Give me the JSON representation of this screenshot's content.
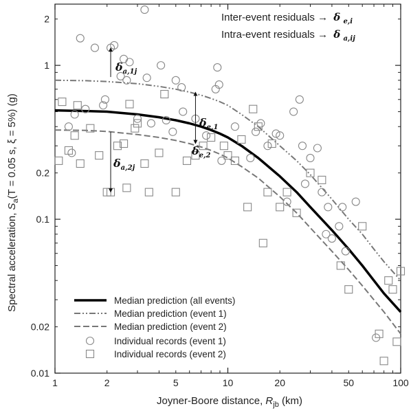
{
  "chart_data": {
    "type": "scatter",
    "xlabel": "Joyner-Boore distance, R_jb (km)",
    "xlabel_main": "Joyner-Boore distance, ",
    "xlabel_var": "R",
    "xlabel_sub": "jb",
    "xlabel_unit": " (km)",
    "ylabel": "Spectral acceleration, S_a(T = 0.05 s, ξ = 5%) (g)",
    "ylabel_main": "Spectral acceleration, ",
    "ylabel_var": "S",
    "ylabel_sub": "a",
    "ylabel_rest": "(T = 0.05 s, ξ = 5%) (g)",
    "x_scale": "log",
    "y_scale": "log",
    "xlim": [
      1,
      100
    ],
    "ylim": [
      0.01,
      2.5
    ],
    "grid": false,
    "x_ticks": [
      {
        "value": 1,
        "label": "1"
      },
      {
        "value": 2,
        "label": "2"
      },
      {
        "value": 5,
        "label": "5"
      },
      {
        "value": 10,
        "label": "10"
      },
      {
        "value": 20,
        "label": "20"
      },
      {
        "value": 50,
        "label": "50"
      },
      {
        "value": 100,
        "label": "100"
      }
    ],
    "y_ticks": [
      {
        "value": 0.01,
        "label": "0.01"
      },
      {
        "value": 0.02,
        "label": "0.02"
      },
      {
        "value": 0.1,
        "label": "0.1"
      },
      {
        "value": 0.2,
        "label": "0.2"
      },
      {
        "value": 1,
        "label": "1"
      },
      {
        "value": 2,
        "label": "2"
      }
    ],
    "legend_position": "bottom-left",
    "series": [
      {
        "name": "Median prediction (all events)",
        "kind": "line",
        "style": "solid-thick",
        "color": "#000000",
        "x": [
          1,
          1.5,
          2,
          3,
          4,
          5,
          6,
          7,
          8,
          9,
          10,
          12,
          15,
          20,
          25,
          30,
          40,
          50,
          60,
          70,
          80,
          100
        ],
        "y": [
          0.51,
          0.505,
          0.5,
          0.48,
          0.46,
          0.44,
          0.42,
          0.4,
          0.38,
          0.36,
          0.34,
          0.3,
          0.25,
          0.19,
          0.15,
          0.12,
          0.085,
          0.064,
          0.05,
          0.04,
          0.033,
          0.025
        ]
      },
      {
        "name": "Median prediction (event 1)",
        "kind": "line",
        "style": "dash-dot-dot",
        "color": "#777777",
        "x": [
          1,
          1.5,
          2,
          3,
          4,
          5,
          6,
          7,
          8,
          9,
          10,
          12,
          15,
          20,
          25,
          30,
          40,
          50,
          60,
          70,
          80,
          100
        ],
        "y": [
          0.8,
          0.795,
          0.785,
          0.76,
          0.73,
          0.7,
          0.67,
          0.64,
          0.61,
          0.58,
          0.55,
          0.48,
          0.4,
          0.3,
          0.24,
          0.195,
          0.135,
          0.1,
          0.08,
          0.064,
          0.053,
          0.04
        ]
      },
      {
        "name": "Median prediction (event 2)",
        "kind": "line",
        "style": "dashed",
        "color": "#777777",
        "x": [
          1,
          1.5,
          2,
          3,
          4,
          5,
          6,
          7,
          8,
          9,
          10,
          12,
          15,
          20,
          25,
          30,
          40,
          50,
          60,
          70,
          80,
          100
        ],
        "y": [
          0.38,
          0.378,
          0.372,
          0.355,
          0.34,
          0.325,
          0.31,
          0.295,
          0.28,
          0.265,
          0.25,
          0.22,
          0.185,
          0.14,
          0.11,
          0.088,
          0.062,
          0.047,
          0.037,
          0.03,
          0.025,
          0.018
        ]
      },
      {
        "name": "Individual records (event 1)",
        "kind": "scatter",
        "marker": "circle",
        "color": "#888888",
        "points": [
          [
            1.2,
            0.4
          ],
          [
            1.25,
            0.27
          ],
          [
            1.3,
            0.48
          ],
          [
            1.4,
            1.5
          ],
          [
            1.5,
            0.52
          ],
          [
            1.7,
            1.3
          ],
          [
            1.9,
            0.55
          ],
          [
            1.95,
            0.6
          ],
          [
            2.1,
            1.3
          ],
          [
            2.2,
            1.35
          ],
          [
            2.4,
            0.85
          ],
          [
            2.5,
            1.1
          ],
          [
            2.6,
            0.8
          ],
          [
            2.7,
            1.05
          ],
          [
            3.0,
            0.45
          ],
          [
            3.3,
            2.3
          ],
          [
            3.4,
            0.83
          ],
          [
            3.6,
            0.42
          ],
          [
            4.1,
            1.0
          ],
          [
            4.4,
            0.44
          ],
          [
            4.8,
            0.37
          ],
          [
            5.0,
            0.8
          ],
          [
            5.4,
            0.72
          ],
          [
            5.5,
            0.5
          ],
          [
            6.5,
            0.45
          ],
          [
            7.5,
            0.35
          ],
          [
            8.5,
            0.7
          ],
          [
            8.7,
            0.97
          ],
          [
            8.9,
            0.75
          ],
          [
            9.2,
            0.24
          ],
          [
            11,
            0.4
          ],
          [
            13.5,
            0.25
          ],
          [
            14.5,
            0.37
          ],
          [
            15.5,
            0.42
          ],
          [
            17,
            0.3
          ],
          [
            19,
            0.36
          ],
          [
            20,
            0.35
          ],
          [
            22,
            0.13
          ],
          [
            24,
            0.5
          ],
          [
            26,
            0.6
          ],
          [
            27,
            0.3
          ],
          [
            28,
            0.17
          ],
          [
            30,
            0.25
          ],
          [
            33,
            0.29
          ],
          [
            35,
            0.15
          ],
          [
            37,
            0.08
          ],
          [
            38,
            0.12
          ],
          [
            40,
            0.075
          ],
          [
            44,
            0.09
          ],
          [
            46,
            0.12
          ],
          [
            48,
            0.062
          ],
          [
            55,
            0.13
          ],
          [
            72,
            0.017
          ]
        ]
      },
      {
        "name": "Individual records (event 2)",
        "kind": "scatter",
        "marker": "square",
        "color": "#888888",
        "points": [
          [
            1.05,
            0.24
          ],
          [
            1.1,
            0.58
          ],
          [
            1.2,
            0.28
          ],
          [
            1.3,
            0.35
          ],
          [
            1.35,
            0.55
          ],
          [
            1.4,
            0.23
          ],
          [
            1.6,
            0.39
          ],
          [
            1.8,
            0.26
          ],
          [
            2.0,
            0.15
          ],
          [
            2.1,
            0.15
          ],
          [
            2.3,
            0.3
          ],
          [
            2.5,
            0.31
          ],
          [
            2.6,
            0.16
          ],
          [
            2.7,
            0.56
          ],
          [
            2.9,
            0.39
          ],
          [
            3.0,
            0.42
          ],
          [
            3.3,
            0.23
          ],
          [
            3.5,
            0.15
          ],
          [
            4.0,
            0.27
          ],
          [
            4.3,
            0.65
          ],
          [
            5.0,
            0.15
          ],
          [
            5.8,
            0.24
          ],
          [
            6.5,
            0.26
          ],
          [
            7.2,
            0.3
          ],
          [
            8.0,
            0.34
          ],
          [
            9.5,
            0.3
          ],
          [
            10,
            0.26
          ],
          [
            11,
            0.24
          ],
          [
            12,
            0.33
          ],
          [
            13,
            0.12
          ],
          [
            14,
            0.52
          ],
          [
            15,
            0.4
          ],
          [
            16,
            0.07
          ],
          [
            17,
            0.15
          ],
          [
            18,
            0.31
          ],
          [
            20,
            0.12
          ],
          [
            22,
            0.15
          ],
          [
            25,
            0.11
          ],
          [
            30,
            0.2
          ],
          [
            35,
            0.18
          ],
          [
            45,
            0.05
          ],
          [
            50,
            0.035
          ],
          [
            60,
            0.09
          ],
          [
            75,
            0.018
          ],
          [
            80,
            0.012
          ],
          [
            85,
            0.04
          ],
          [
            90,
            0.035
          ],
          [
            95,
            0.016
          ],
          [
            100,
            0.046
          ]
        ]
      }
    ],
    "annotations": {
      "inter_event_text": "Inter-event residuals →",
      "intra_event_text": "Intra-event residuals →",
      "delta": "δ",
      "sub_e_i": "e,i",
      "sub_a_ij": "a,ij",
      "sub_a_1j": "a,1j",
      "sub_a_2j": "a,2j",
      "sub_e_1": "e,1",
      "sub_e_2": "e,2"
    },
    "residual_arrows": [
      {
        "label": "δa,1j",
        "x": 2.1,
        "y_from": 0.84,
        "y_to": 1.3
      },
      {
        "label": "δa,2j",
        "x": 2.1,
        "y_from": 0.37,
        "y_to": 0.15
      },
      {
        "label": "δe,1",
        "x": 6.5,
        "y_from": 0.42,
        "y_to": 0.67
      },
      {
        "label": "δe,2",
        "x": 6.5,
        "y_from": 0.42,
        "y_to": 0.31
      }
    ]
  }
}
